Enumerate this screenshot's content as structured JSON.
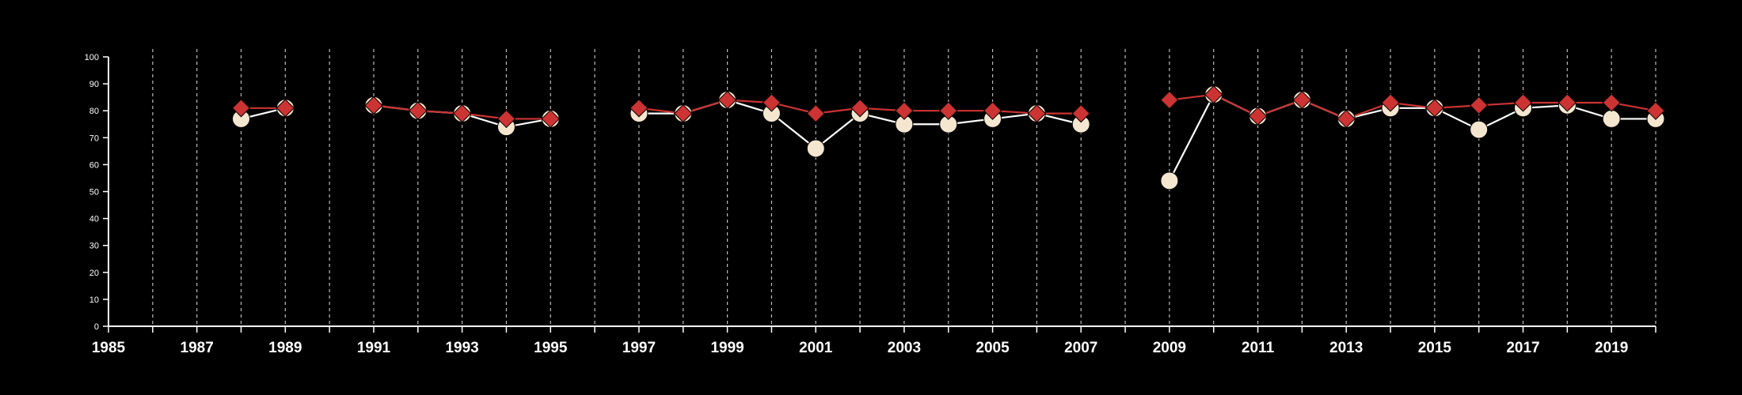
{
  "chart_data": {
    "type": "line",
    "title": "",
    "xlabel": "",
    "ylabel": "",
    "xlim": [
      1985,
      2020
    ],
    "ylim": [
      0,
      100
    ],
    "x_ticks": [
      1985,
      1987,
      1989,
      1991,
      1993,
      1995,
      1997,
      1999,
      2001,
      2003,
      2005,
      2007,
      2009,
      2011,
      2013,
      2015,
      2017,
      2019
    ],
    "y_ticks": [
      0,
      10,
      20,
      30,
      40,
      50,
      60,
      70,
      80,
      90,
      100
    ],
    "grid": "vertical dashed lines at each year",
    "background_color": "#000000",
    "x": [
      1985,
      1986,
      1987,
      1988,
      1989,
      1990,
      1991,
      1992,
      1993,
      1994,
      1995,
      1996,
      1997,
      1998,
      1999,
      2000,
      2001,
      2002,
      2003,
      2004,
      2005,
      2006,
      2007,
      2008,
      2009,
      2010,
      2011,
      2012,
      2013,
      2014,
      2015,
      2016,
      2017,
      2018,
      2019,
      2020
    ],
    "series": [
      {
        "marker": "circle",
        "color": "#f5e6d0",
        "line_color": "#ffffff",
        "values": [
          null,
          null,
          null,
          77,
          81,
          null,
          82,
          80,
          79,
          74,
          77,
          null,
          79,
          79,
          84,
          79,
          66,
          79,
          75,
          75,
          77,
          79,
          75,
          null,
          54,
          86,
          78,
          84,
          77,
          81,
          81,
          73,
          81,
          82,
          77,
          77
        ]
      },
      {
        "marker": "diamond",
        "color": "#cc3333",
        "line_color": "#cc3333",
        "values": [
          null,
          null,
          null,
          81,
          81,
          null,
          82,
          80,
          79,
          77,
          77,
          null,
          81,
          79,
          84,
          83,
          79,
          81,
          80,
          80,
          80,
          79,
          79,
          null,
          84,
          86,
          78,
          84,
          77,
          83,
          81,
          82,
          83,
          83,
          83,
          80
        ]
      }
    ]
  }
}
